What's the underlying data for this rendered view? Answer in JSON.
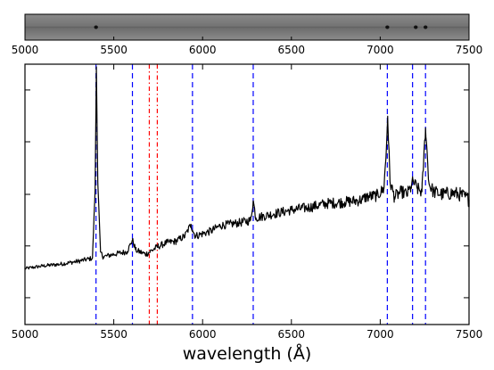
{
  "chart_data": [
    {
      "type": "image",
      "kind": "2D spectrum strip",
      "xlim": [
        5000,
        7500
      ],
      "x_ticks": [
        5000,
        5500,
        6000,
        6500,
        7000,
        7500
      ],
      "x_tick_labels": [
        "5000",
        "5500",
        "6000",
        "6500",
        "7000",
        "7500"
      ],
      "bright_spots": [
        5400,
        7040,
        7200,
        7255
      ],
      "colors": {
        "background": "#7f7f7f",
        "trace": "#555555"
      }
    },
    {
      "type": "line",
      "xlabel": "wavelength (Å)",
      "xlim": [
        5000,
        7500
      ],
      "ylim": [
        0,
        1
      ],
      "y_tick_labels_shown": false,
      "grid": false,
      "x_ticks": [
        5000,
        5500,
        6000,
        6500,
        7000,
        7500
      ],
      "x_tick_labels": [
        "5000",
        "5500",
        "6000",
        "6500",
        "7000",
        "7500"
      ],
      "y_ticks": [
        0.103,
        0.302,
        0.5,
        0.702,
        0.901
      ],
      "series": [
        {
          "color": "#000000",
          "x": [
            5000,
            5100,
            5200,
            5300,
            5380,
            5395,
            5402,
            5410,
            5425,
            5440,
            5500,
            5575,
            5605,
            5625,
            5680,
            5750,
            5800,
            5850,
            5900,
            5935,
            5945,
            5960,
            6050,
            6100,
            6150,
            6200,
            6270,
            6285,
            6300,
            6400,
            6500,
            6600,
            6700,
            6800,
            6860,
            6900,
            6920,
            6980,
            7020,
            7033,
            7042,
            7055,
            7080,
            7120,
            7150,
            7172,
            7185,
            7210,
            7235,
            7255,
            7275,
            7300,
            7350,
            7400,
            7450,
            7500
          ],
          "y": [
            0.215,
            0.225,
            0.232,
            0.243,
            0.255,
            0.52,
            0.99,
            0.55,
            0.28,
            0.26,
            0.27,
            0.28,
            0.325,
            0.285,
            0.27,
            0.3,
            0.315,
            0.32,
            0.34,
            0.385,
            0.36,
            0.34,
            0.36,
            0.38,
            0.385,
            0.39,
            0.4,
            0.475,
            0.41,
            0.425,
            0.44,
            0.45,
            0.465,
            0.47,
            0.475,
            0.48,
            0.49,
            0.495,
            0.52,
            0.65,
            0.8,
            0.55,
            0.49,
            0.51,
            0.5,
            0.525,
            0.55,
            0.52,
            0.51,
            0.755,
            0.54,
            0.51,
            0.5,
            0.505,
            0.5,
            0.48
          ]
        }
      ],
      "vlines": [
        {
          "x": 5400,
          "color": "#0000ff",
          "style": "dashed"
        },
        {
          "x": 5605,
          "color": "#0000ff",
          "style": "dashed"
        },
        {
          "x": 5943,
          "color": "#0000ff",
          "style": "dashed"
        },
        {
          "x": 6285,
          "color": "#0000ff",
          "style": "dashed"
        },
        {
          "x": 7040,
          "color": "#0000ff",
          "style": "dashed"
        },
        {
          "x": 7182,
          "color": "#0000ff",
          "style": "dashed"
        },
        {
          "x": 7255,
          "color": "#0000ff",
          "style": "dashed"
        },
        {
          "x": 5700,
          "color": "#ff0000",
          "style": "dashdot"
        },
        {
          "x": 5745,
          "color": "#ff0000",
          "style": "dashdot"
        }
      ]
    }
  ]
}
